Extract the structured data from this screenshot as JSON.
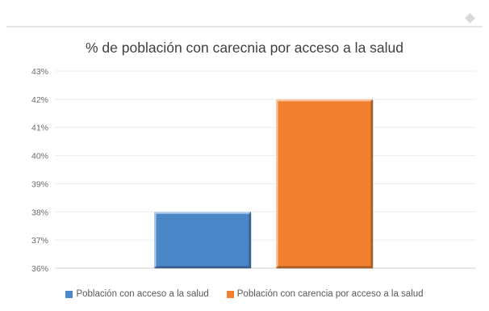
{
  "chart_data": {
    "type": "bar",
    "title": "% de población con carecnia por acceso a la salud",
    "xlabel": "",
    "ylabel": "",
    "ylim": [
      36,
      43
    ],
    "y_ticks": [
      "36%",
      "37%",
      "38%",
      "39%",
      "40%",
      "41%",
      "42%",
      "43%"
    ],
    "y_tick_values": [
      36,
      37,
      38,
      39,
      40,
      41,
      42,
      43
    ],
    "grid": true,
    "legend_position": "bottom",
    "series": [
      {
        "name": "Población con acceso a la salud",
        "value": 38,
        "color": "#4a86c8"
      },
      {
        "name": "Población con carencia por acceso a la salud",
        "value": 42,
        "color": "#f07f2e"
      }
    ]
  }
}
